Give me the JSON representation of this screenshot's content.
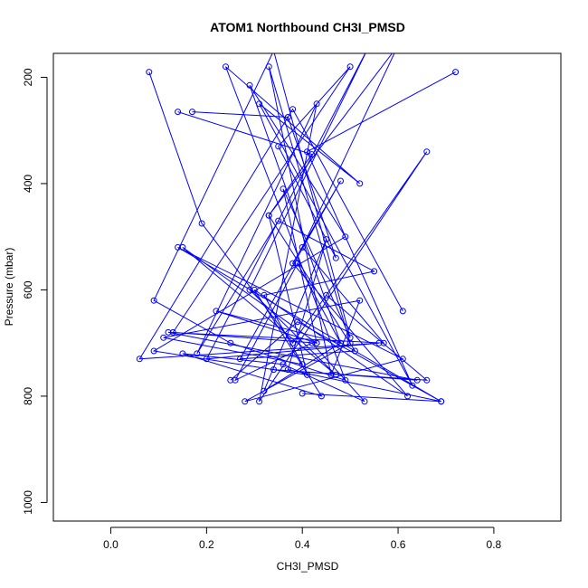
{
  "chart_data": {
    "type": "line",
    "title": "ATOM1 Northbound CH3I_PMSD",
    "xlabel": "CH3I_PMSD",
    "ylabel": "Pressure (mbar)",
    "xlim": [
      -0.12,
      0.94
    ],
    "ylim": [
      1035,
      155
    ],
    "y_reversed": true,
    "x_ticks": [
      0.0,
      0.2,
      0.4,
      0.6,
      0.8
    ],
    "x_tick_labels": [
      "0.0",
      "0.2",
      "0.4",
      "0.6",
      "0.8"
    ],
    "y_ticks": [
      200,
      400,
      600,
      800,
      1000
    ],
    "y_tick_labels": [
      "200",
      "400",
      "600",
      "800",
      "1000"
    ],
    "grid": false,
    "line_color": "#0000ff",
    "marker": "open-circle",
    "series": [
      {
        "x": [
          0.72,
          0.41,
          0.63,
          0.31,
          0.52,
          0.24,
          0.49,
          0.25,
          0.09,
          0.34,
          0.5,
          0.36,
          0.43,
          0.15,
          0.47,
          0.29,
          0.54,
          0.2,
          0.56,
          0.06,
          0.38,
          0.61
        ],
        "y": [
          190,
          340,
          780,
          250,
          400,
          180,
          770,
          700,
          620,
          150,
          690,
          410,
          700,
          520,
          760,
          600,
          140,
          730,
          700,
          730,
          260,
          640
        ]
      },
      {
        "x": [
          0.08,
          0.19,
          0.38,
          0.66,
          0.31,
          0.43,
          0.18,
          0.35,
          0.55,
          0.32,
          0.4,
          0.11,
          0.52,
          0.46,
          0.33,
          0.5,
          0.28,
          0.61,
          0.14,
          0.69,
          0.39,
          0.25
        ],
        "y": [
          190,
          475,
          700,
          340,
          810,
          250,
          720,
          470,
          565,
          610,
          740,
          690,
          620,
          760,
          180,
          700,
          810,
          730,
          520,
          810,
          660,
          770
        ]
      },
      {
        "x": [
          0.17,
          0.37,
          0.47,
          0.35,
          0.5,
          0.13,
          0.43,
          0.22,
          0.48,
          0.29,
          0.49,
          0.09,
          0.41,
          0.33,
          0.6,
          0.4,
          0.57,
          0.12,
          0.64,
          0.34,
          0.66,
          0.45
        ],
        "y": [
          265,
          275,
          540,
          330,
          180,
          680,
          700,
          640,
          700,
          215,
          500,
          715,
          760,
          460,
          140,
          520,
          700,
          680,
          770,
          750,
          770,
          610
        ]
      },
      {
        "x": [
          0.14,
          0.42,
          0.33,
          0.51,
          0.27,
          0.48,
          0.38,
          0.62,
          0.3,
          0.44,
          0.15,
          0.36,
          0.53,
          0.42,
          0.26,
          0.39,
          0.48,
          0.32,
          0.45,
          0.37,
          0.69,
          0.4
        ],
        "y": [
          265,
          345,
          460,
          715,
          730,
          395,
          550,
          800,
          600,
          800,
          720,
          740,
          810,
          700,
          770,
          550,
          700,
          790,
          505,
          750,
          810,
          795
        ]
      }
    ]
  }
}
